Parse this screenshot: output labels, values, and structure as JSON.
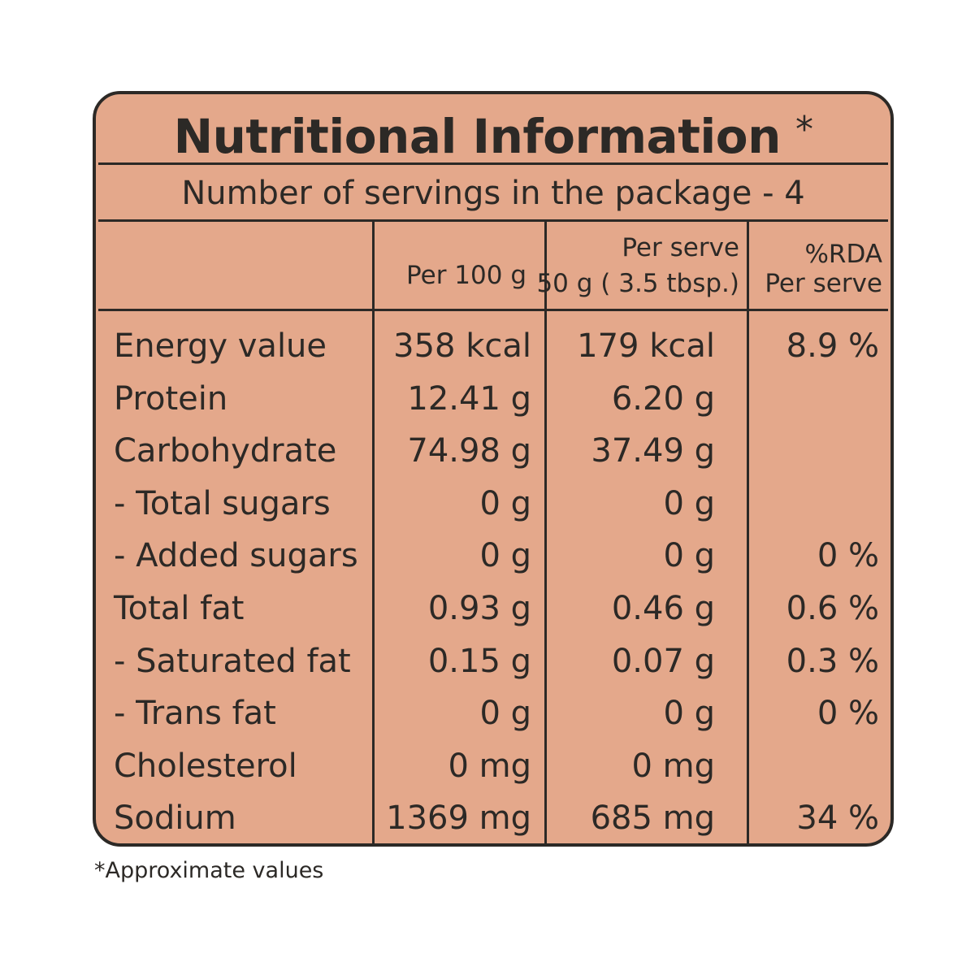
{
  "title": "Nutritional Information",
  "title_marker": "*",
  "servings": "Number of servings in the package - 4",
  "headers": {
    "per100": "Per 100 g",
    "serve_line1": "Per serve",
    "serve_line2": "50 g ( 3.5 tbsp.)",
    "rda_line1": "%RDA",
    "rda_line2": "Per serve"
  },
  "rows": [
    {
      "name": "Energy value",
      "per100": "358 kcal",
      "serve": "179 kcal",
      "rda": "8.9 %"
    },
    {
      "name": "Protein",
      "per100": "12.41 g",
      "serve": "6.20 g",
      "rda": ""
    },
    {
      "name": "Carbohydrate",
      "per100": "74.98 g",
      "serve": "37.49 g",
      "rda": ""
    },
    {
      "name": "- Total sugars",
      "per100": "0 g",
      "serve": "0 g",
      "rda": ""
    },
    {
      "name": "- Added sugars",
      "per100": "0 g",
      "serve": "0 g",
      "rda": "0 %"
    },
    {
      "name": "Total fat",
      "per100": "0.93 g",
      "serve": "0.46 g",
      "rda": "0.6 %"
    },
    {
      "name": "- Saturated fat",
      "per100": "0.15 g",
      "serve": "0.07 g",
      "rda": "0.3 %"
    },
    {
      "name": "- Trans fat",
      "per100": "0 g",
      "serve": "0 g",
      "rda": "0 %"
    },
    {
      "name": "Cholesterol",
      "per100": "0 mg",
      "serve": "0 mg",
      "rda": ""
    },
    {
      "name": "Sodium",
      "per100": "1369 mg",
      "serve": "685 mg",
      "rda": "34 %"
    }
  ],
  "footnote": "*Approximate values",
  "colors": {
    "panel": "#e4a88b",
    "ink": "#2c2926",
    "background": "#ffffff"
  }
}
